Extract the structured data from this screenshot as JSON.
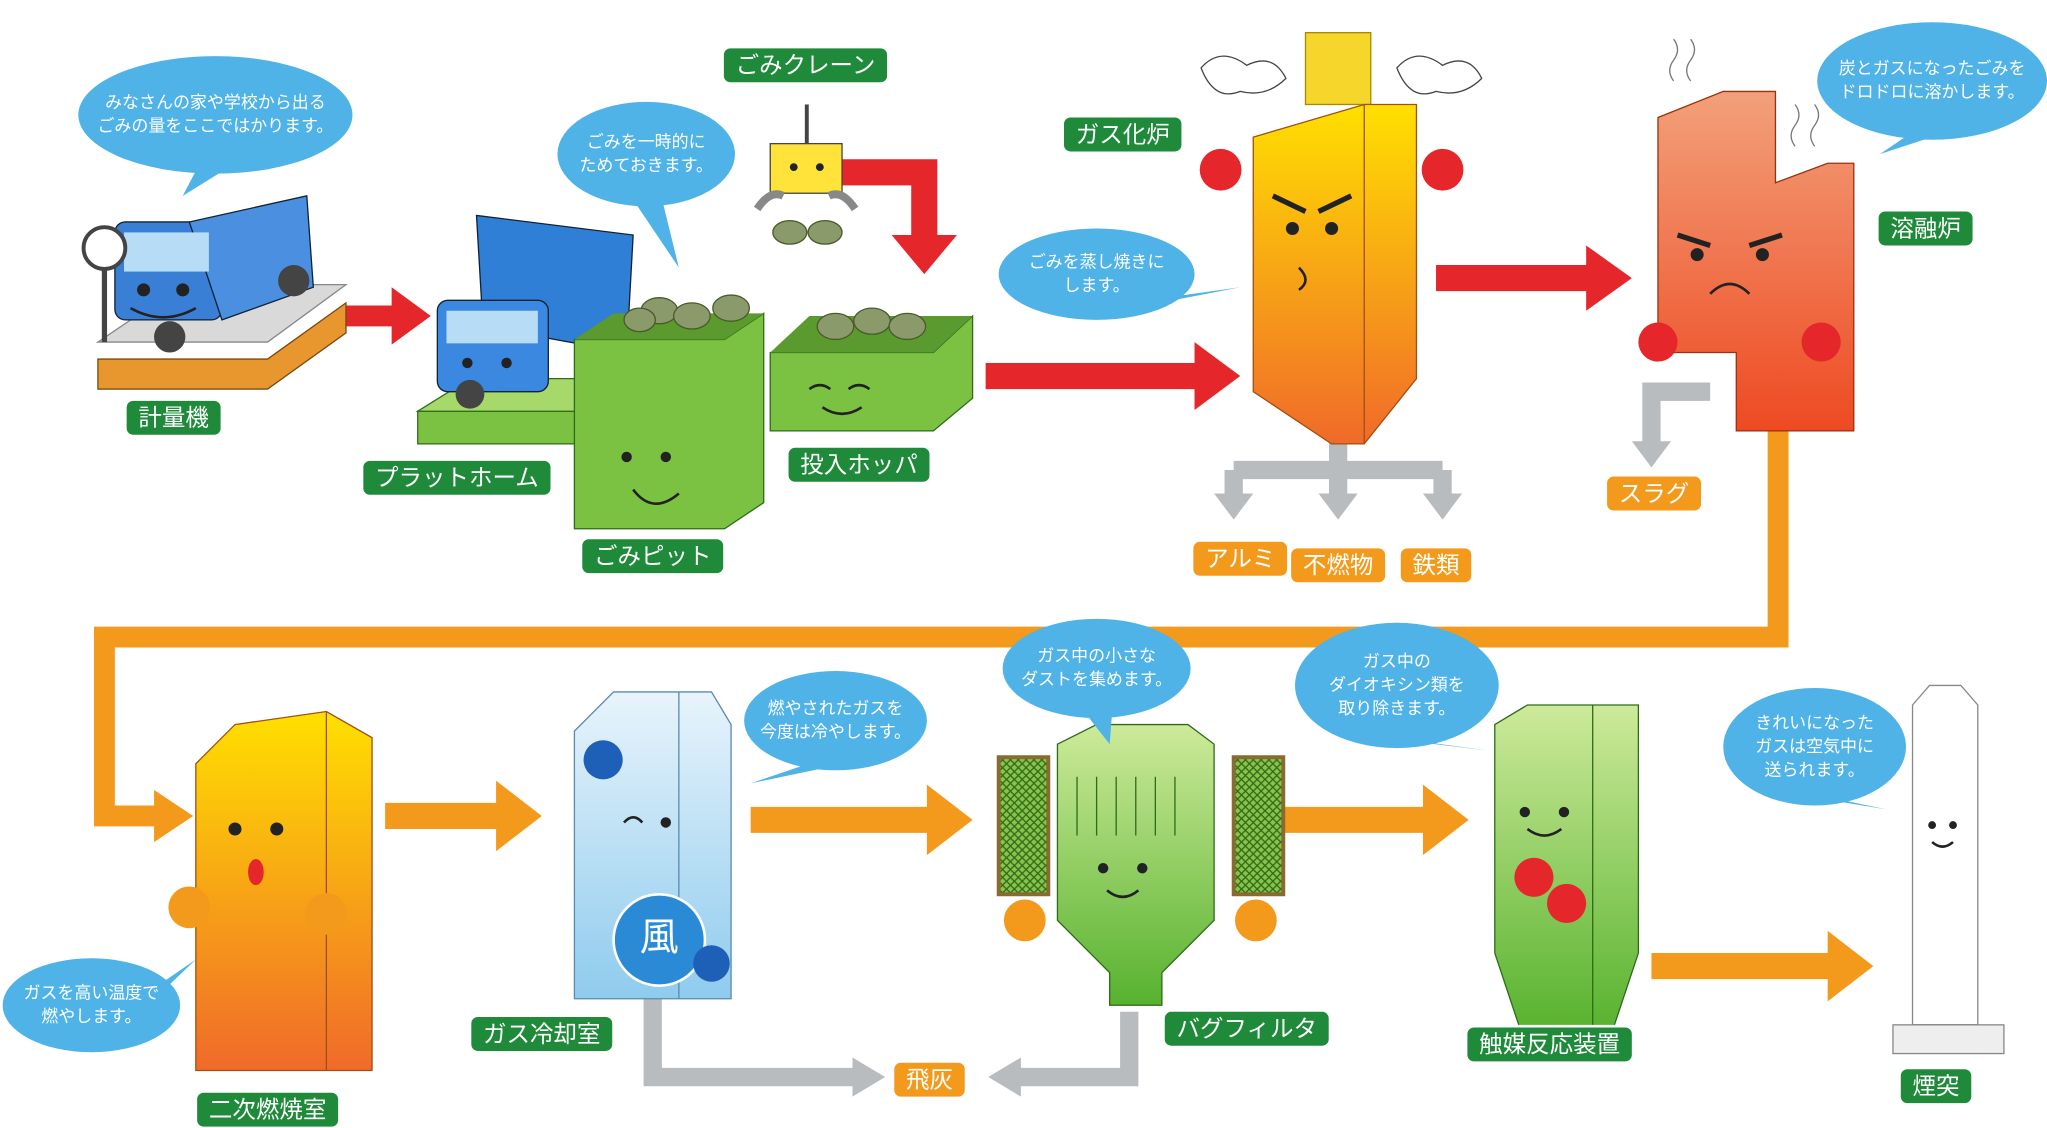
{
  "stations": {
    "scale": {
      "label": "計量機",
      "bubble": [
        "みなさんの家や学校から出る",
        "ごみの量をここではかります。"
      ]
    },
    "platform": {
      "label": "プラットホーム"
    },
    "pit": {
      "label": "ごみピット",
      "bubble": [
        "ごみを一時的に",
        "ためておきます。"
      ]
    },
    "crane": {
      "label": "ごみクレーン"
    },
    "hopper": {
      "label": "投入ホッパ"
    },
    "gasifier": {
      "label": "ガス化炉",
      "bubble": [
        "ごみを蒸し焼きに",
        "します。"
      ]
    },
    "melter": {
      "label": "溶融炉",
      "bubble": [
        "炭とガスになったごみを",
        "ドロドロに溶かします。"
      ]
    },
    "secondary": {
      "label": "二次燃焼室",
      "bubble": [
        "ガスを高い温度で",
        "燃やします。"
      ]
    },
    "cooler": {
      "label": "ガス冷却室",
      "bubble": [
        "燃やされたガスを",
        "今度は冷やします。"
      ],
      "fan": "風"
    },
    "bagfilter": {
      "label": "バグフィルタ",
      "bubble": [
        "ガス中の小さな",
        "ダストを集めます。"
      ]
    },
    "catalyst": {
      "label": "触媒反応装置",
      "bubble": [
        "ガス中の",
        "ダイオキシン類を",
        "取り除きます。"
      ]
    },
    "chimney": {
      "label": "煙突",
      "bubble": [
        "きれいになった",
        "ガスは空気中に",
        "送られます。"
      ]
    }
  },
  "outputs": {
    "aluminum": "アルミ",
    "incombustible": "不燃物",
    "iron": "鉄類",
    "slag": "スラグ",
    "flyash": "飛灰"
  }
}
